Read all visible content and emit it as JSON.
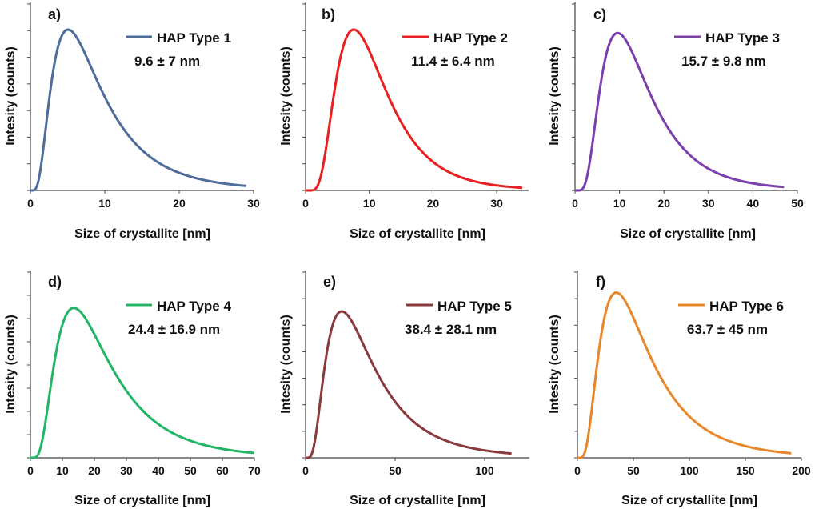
{
  "chart_data": [
    {
      "type": "line",
      "panel_label": "a)",
      "xlabel": "Size of crystallite [nm]",
      "ylabel": "Intesity (counts)",
      "xlim": [
        0,
        30
      ],
      "xticks": [
        0,
        10,
        20,
        30
      ],
      "xticks_labels": [
        "0",
        "10",
        "20",
        "30"
      ],
      "x_end": 29,
      "y_ticks_count": 7,
      "peak_ratio": 0.94,
      "series": [
        {
          "name": "HAP Type 1",
          "mean": 9.6,
          "sd": 7,
          "color": "#4f6d9a"
        }
      ],
      "annotation": "9.6 ± 7 nm"
    },
    {
      "type": "line",
      "panel_label": "b)",
      "xlabel": "Size of crystallite [nm]",
      "ylabel": "Intesity (counts)",
      "xlim": [
        0,
        35
      ],
      "xticks": [
        0,
        10,
        20,
        30
      ],
      "xticks_labels": [
        "0",
        "10",
        "20",
        "30"
      ],
      "x_end": 34,
      "y_ticks_count": 7,
      "peak_ratio": 0.94,
      "series": [
        {
          "name": "HAP Type 2",
          "mean": 11.4,
          "sd": 6.4,
          "color": "#e8201f"
        }
      ],
      "annotation": "11.4 ± 6.4 nm"
    },
    {
      "type": "line",
      "panel_label": "c)",
      "xlabel": "Size of crystallite [nm]",
      "ylabel": "Intesity (counts)",
      "xlim": [
        0,
        50
      ],
      "xticks": [
        0,
        10,
        20,
        30,
        40,
        50
      ],
      "xticks_labels": [
        "0",
        "10",
        "20",
        "30",
        "40",
        "50"
      ],
      "x_end": 47,
      "y_ticks_count": 7,
      "peak_ratio": 0.92,
      "series": [
        {
          "name": "HAP Type 3",
          "mean": 15.7,
          "sd": 9.8,
          "color": "#7b3fae"
        }
      ],
      "annotation": "15.7 ± 9.8 nm"
    },
    {
      "type": "line",
      "panel_label": "d)",
      "xlabel": "Size of crystallite [nm]",
      "ylabel": "Intesity (counts)",
      "xlim": [
        0,
        70
      ],
      "xticks": [
        0,
        10,
        20,
        30,
        40,
        50,
        60,
        70
      ],
      "xticks_labels": [
        "0",
        "10",
        "20",
        "30",
        "40",
        "50",
        "60",
        "70"
      ],
      "x_end": 70,
      "y_ticks_count": 8,
      "peak_ratio": 0.88,
      "series": [
        {
          "name": "HAP Type 4",
          "mean": 24.4,
          "sd": 16.9,
          "color": "#22b565"
        }
      ],
      "annotation": "24.4 ± 16.9 nm"
    },
    {
      "type": "line",
      "panel_label": "e)",
      "xlabel": "Size of crystallite [nm]",
      "ylabel": "Intesity (counts)",
      "xlim": [
        0,
        125
      ],
      "xticks": [
        0,
        50,
        100
      ],
      "xticks_labels": [
        "0",
        "50",
        "100"
      ],
      "x_end": 115,
      "y_ticks_count": 7,
      "peak_ratio": 0.86,
      "series": [
        {
          "name": "HAP Type 5",
          "mean": 38.4,
          "sd": 28.1,
          "color": "#8a3a3a"
        }
      ],
      "annotation": "38.4 ± 28.1 nm"
    },
    {
      "type": "line",
      "panel_label": "f)",
      "xlabel": "Size of crystallite [nm]",
      "ylabel": "Intesity (counts)",
      "xlim": [
        0,
        200
      ],
      "xticks": [
        0,
        50,
        100,
        150,
        200
      ],
      "xticks_labels": [
        "0",
        "50",
        "100",
        "150",
        "200"
      ],
      "x_end": 191,
      "y_ticks_count": 7,
      "peak_ratio": 0.97,
      "series": [
        {
          "name": "HAP Type 6",
          "mean": 63.7,
          "sd": 45,
          "color": "#e8862a"
        }
      ],
      "annotation": "63.7 ± 45 nm"
    }
  ]
}
